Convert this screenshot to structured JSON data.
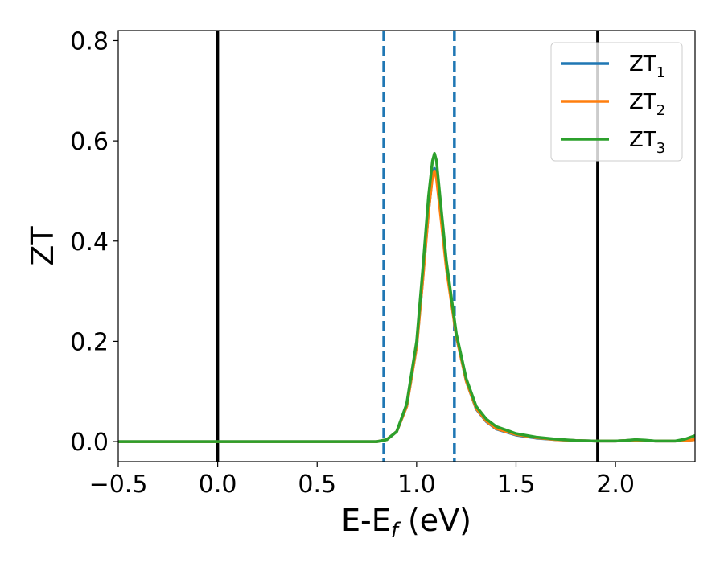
{
  "chart_data": {
    "type": "line",
    "xlabel": "E-E",
    "xlabel_sub": "f",
    "xlabel_unit": " (eV)",
    "ylabel": "ZT",
    "xlim": [
      -0.5,
      2.4
    ],
    "ylim": [
      -0.04,
      0.82
    ],
    "xticks": [
      -0.5,
      0.0,
      0.5,
      1.0,
      1.5,
      2.0
    ],
    "xtick_labels": [
      "−0.5",
      "0.0",
      "0.5",
      "1.0",
      "1.5",
      "2.0"
    ],
    "yticks": [
      0.0,
      0.2,
      0.4,
      0.6,
      0.8
    ],
    "ytick_labels": [
      "0.0",
      "0.2",
      "0.4",
      "0.6",
      "0.8"
    ],
    "legend_placement": "top-right",
    "vlines": [
      {
        "x": 0.0,
        "style": "solid",
        "color": "#000000"
      },
      {
        "x": 1.91,
        "style": "solid",
        "color": "#000000"
      },
      {
        "x": 0.835,
        "style": "dashed",
        "color": "#1f77b4"
      },
      {
        "x": 1.19,
        "style": "dashed",
        "color": "#1f77b4"
      }
    ],
    "series": [
      {
        "name": "ZT",
        "name_sub": "1",
        "color": "#1f77b4",
        "x": [
          -0.5,
          0.0,
          0.5,
          0.8,
          0.85,
          0.9,
          0.95,
          1.0,
          1.03,
          1.06,
          1.08,
          1.09,
          1.1,
          1.12,
          1.15,
          1.2,
          1.25,
          1.3,
          1.35,
          1.4,
          1.5,
          1.6,
          1.7,
          1.8,
          1.9,
          2.0,
          2.05,
          2.1,
          2.15,
          2.2,
          2.25,
          2.3,
          2.35,
          2.4
        ],
        "y": [
          0,
          0,
          0,
          0,
          0.004,
          0.02,
          0.07,
          0.19,
          0.32,
          0.46,
          0.53,
          0.545,
          0.53,
          0.46,
          0.35,
          0.21,
          0.12,
          0.065,
          0.04,
          0.025,
          0.013,
          0.007,
          0.004,
          0.002,
          0.001,
          0.001,
          0.002,
          0.003,
          0.002,
          0.001,
          0.001,
          0.001,
          0.002,
          0.004
        ]
      },
      {
        "name": "ZT",
        "name_sub": "2",
        "color": "#ff7f0e",
        "x": [
          -0.5,
          0.0,
          0.5,
          0.8,
          0.85,
          0.9,
          0.95,
          1.0,
          1.03,
          1.06,
          1.08,
          1.09,
          1.1,
          1.12,
          1.15,
          1.2,
          1.25,
          1.3,
          1.35,
          1.4,
          1.5,
          1.6,
          1.7,
          1.8,
          1.9,
          2.0,
          2.05,
          2.1,
          2.15,
          2.2,
          2.25,
          2.3,
          2.35,
          2.4
        ],
        "y": [
          0,
          0,
          0,
          0,
          0.004,
          0.02,
          0.07,
          0.19,
          0.32,
          0.46,
          0.53,
          0.54,
          0.525,
          0.455,
          0.345,
          0.21,
          0.12,
          0.066,
          0.041,
          0.026,
          0.014,
          0.008,
          0.004,
          0.002,
          0.001,
          0.001,
          0.002,
          0.003,
          0.002,
          0.001,
          0.001,
          0.001,
          0.002,
          0.004
        ]
      },
      {
        "name": "ZT",
        "name_sub": "3",
        "color": "#2ca02c",
        "x": [
          -0.5,
          0.0,
          0.5,
          0.8,
          0.85,
          0.9,
          0.95,
          1.0,
          1.03,
          1.06,
          1.08,
          1.09,
          1.1,
          1.12,
          1.15,
          1.2,
          1.25,
          1.3,
          1.35,
          1.4,
          1.5,
          1.6,
          1.7,
          1.8,
          1.9,
          2.0,
          2.05,
          2.1,
          2.15,
          2.2,
          2.25,
          2.3,
          2.35,
          2.4
        ],
        "y": [
          0,
          0,
          0,
          0,
          0.004,
          0.02,
          0.075,
          0.2,
          0.34,
          0.49,
          0.56,
          0.575,
          0.56,
          0.48,
          0.36,
          0.215,
          0.125,
          0.07,
          0.045,
          0.03,
          0.016,
          0.009,
          0.005,
          0.002,
          0.001,
          0.001,
          0.002,
          0.004,
          0.003,
          0.001,
          0.001,
          0.001,
          0.005,
          0.012
        ]
      }
    ]
  }
}
